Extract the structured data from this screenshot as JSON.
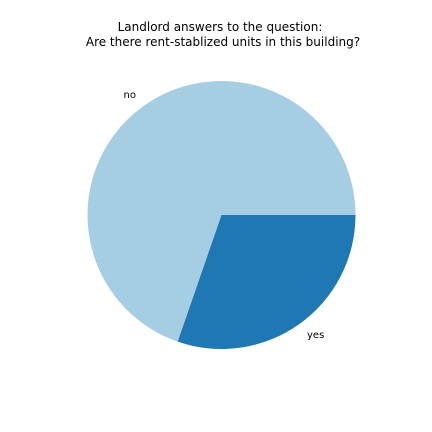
{
  "chart_data": {
    "type": "pie",
    "title": "Landlord answers to the question:\nAre there rent-stablized units in this building?",
    "title_lines": [
      "Landlord answers to the question:",
      "Are there rent-stablized units in this building?"
    ],
    "start_angle_deg": 0,
    "direction": "counterclockwise",
    "slices": [
      {
        "label": "no",
        "value": 0.697,
        "color": "#a6cee3"
      },
      {
        "label": "yes",
        "value": 0.303,
        "color": "#1f78b4"
      }
    ]
  }
}
